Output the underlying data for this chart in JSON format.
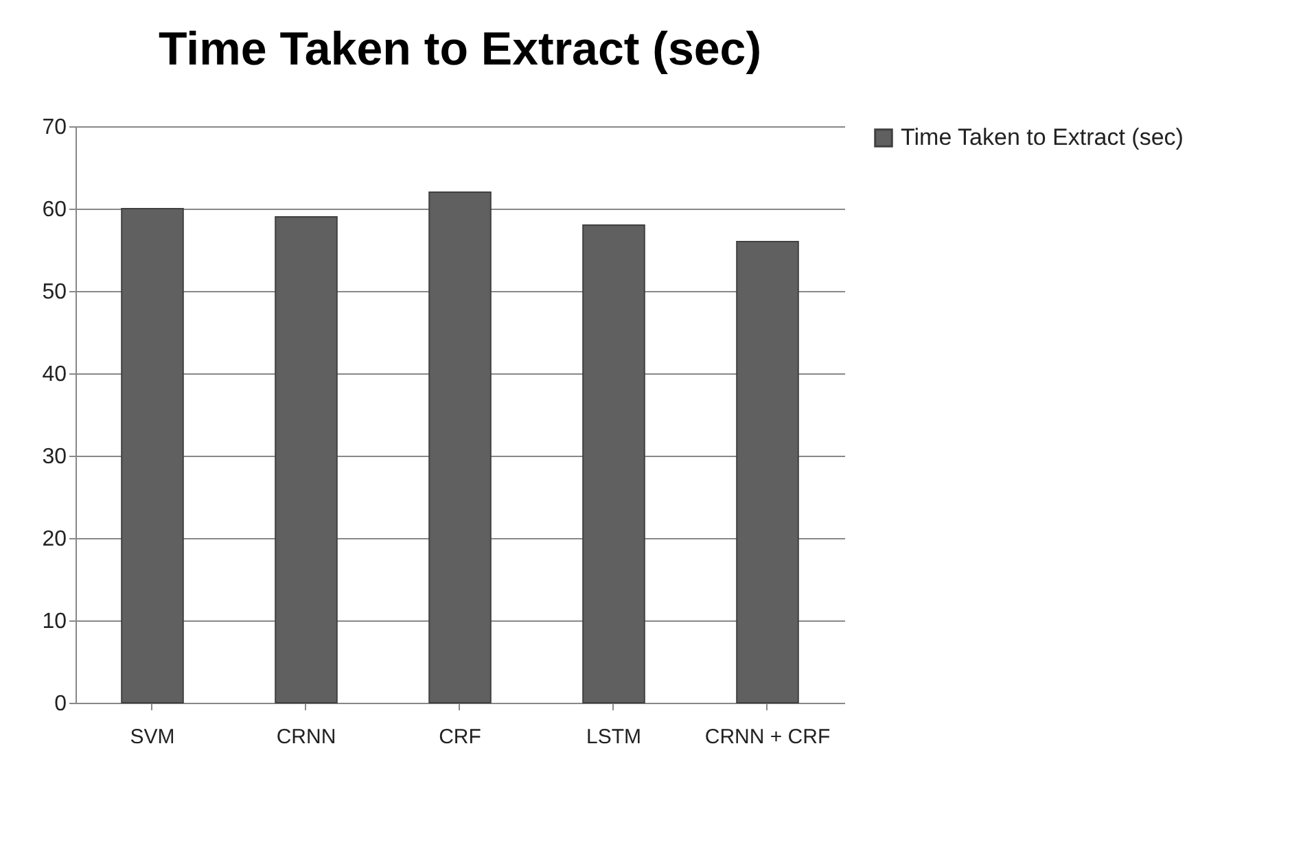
{
  "chart_data": {
    "type": "bar",
    "title": "Time Taken to Extract (sec)",
    "categories": [
      "SVM",
      "CRNN",
      "CRF",
      "LSTM",
      "CRNN + CRF"
    ],
    "series": [
      {
        "name": "Time Taken to Extract (sec)",
        "color": "#606060",
        "values": [
          60,
          59,
          62,
          58,
          56
        ]
      }
    ],
    "ylim": [
      0,
      70
    ],
    "yticks": [
      0,
      10,
      20,
      30,
      40,
      50,
      60,
      70
    ],
    "grid": "y",
    "legend": "right"
  }
}
